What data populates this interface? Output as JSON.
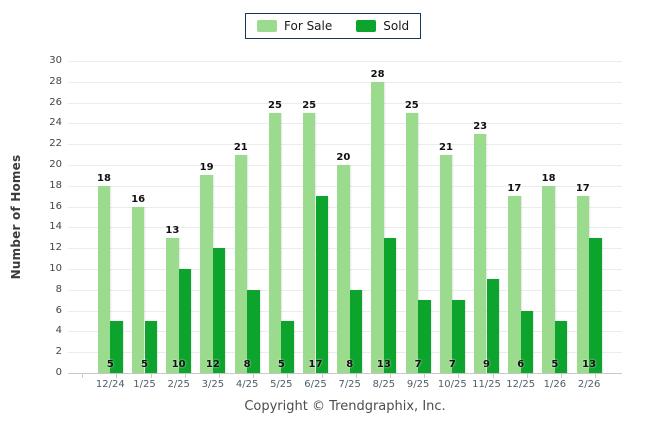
{
  "footer": {
    "copyright": "Copyright © Trendgraphix, Inc."
  },
  "chart_data": {
    "type": "bar",
    "title": "",
    "xlabel": "",
    "ylabel": "Number of Homes",
    "ylim": [
      0,
      30
    ],
    "ytick_step": 2,
    "grid": true,
    "legend_position": "top-center",
    "categories": [
      "12/24",
      "1/25",
      "2/25",
      "3/25",
      "4/25",
      "5/25",
      "6/25",
      "7/25",
      "8/25",
      "9/25",
      "10/25",
      "11/25",
      "12/25",
      "1/26",
      "2/26"
    ],
    "series": [
      {
        "name": "For Sale",
        "color": "#9ADB8D",
        "values": [
          18,
          16,
          13,
          19,
          21,
          25,
          25,
          20,
          28,
          25,
          21,
          23,
          17,
          18,
          17
        ]
      },
      {
        "name": "Sold",
        "color": "#0CA42C",
        "values": [
          5,
          5,
          10,
          12,
          8,
          5,
          17,
          8,
          13,
          7,
          7,
          9,
          6,
          5,
          13
        ]
      }
    ],
    "colors": {
      "grid": "#ECECEC",
      "axis": "#C9C9C9",
      "legend_border": "#17375D",
      "xtick_text": "#4E5D6B",
      "ytick_text": "#444444",
      "value_label_text": "#111111",
      "copyright_text": "#4D4D4D"
    }
  }
}
